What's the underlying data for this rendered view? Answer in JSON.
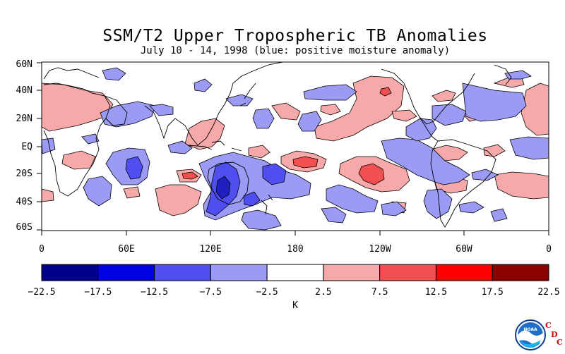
{
  "title": "SSM/T2 Upper Tropospheric TB Anomalies",
  "subtitle": "July 10 - 14, 1998 (blue: positive moisture anomaly)",
  "lat_labels": [
    "60N",
    "40N",
    "20N",
    "EQ",
    "20S",
    "40S",
    "60S"
  ],
  "lon_labels": [
    "0",
    "60E",
    "120E",
    "180",
    "120W",
    "60W",
    "0"
  ],
  "colorbar": {
    "ticks": [
      "-22.5",
      "-17.5",
      "-12.5",
      "-7.5",
      "-2.5",
      "2.5",
      "7.5",
      "12.5",
      "17.5",
      "22.5"
    ],
    "colors": [
      "#00008b",
      "#0000e0",
      "#4f4ff0",
      "#9b9bf5",
      "#ffffff",
      "#f7a9a9",
      "#f25050",
      "#ff0000",
      "#8b0000"
    ],
    "units": "K"
  },
  "logo": {
    "icon": "noaa-logo-icon",
    "text": "NOAA"
  },
  "cdc": {
    "letters": [
      "C",
      "D",
      "C"
    ]
  },
  "colors": {
    "light_blue": "#9b9bf5",
    "mid_blue": "#4f4ff0",
    "dark_blue": "#2020c0",
    "light_red": "#f7a9a9",
    "mid_red": "#f25050"
  }
}
